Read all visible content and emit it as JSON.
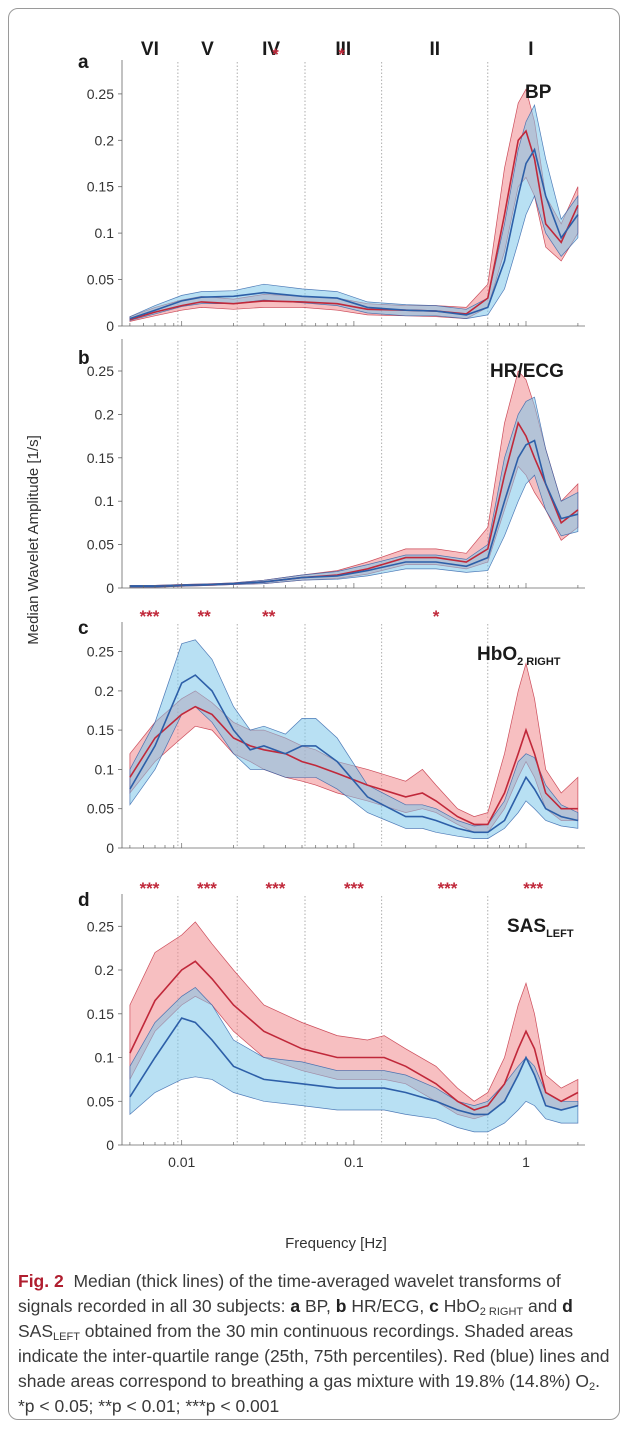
{
  "figure": {
    "ylabel": "Median Wavelet Amplitude [1/s]",
    "xlabel": "Frequency [Hz]",
    "x_ticks": [
      0.01,
      0.1,
      1
    ],
    "x_tick_labels": [
      "0.01",
      "0.1",
      "1"
    ],
    "x_range": [
      0.0045,
      2.2
    ],
    "x_scale": "log",
    "band_boundaries": [
      0.0095,
      0.021,
      0.052,
      0.145,
      0.6
    ],
    "band_labels": [
      "VI",
      "V",
      "IV",
      "III",
      "II",
      "I"
    ],
    "y_ticks": [
      0,
      0.05,
      0.1,
      0.15,
      0.2,
      0.25
    ],
    "y_tick_labels": [
      "0",
      "0.05",
      "0.1",
      "0.15",
      "0.2",
      "0.25"
    ],
    "colors": {
      "red_line": "#c0283a",
      "red_fill": "#f08a8e",
      "blue_line": "#2d5fa8",
      "blue_fill": "#7ec6ea",
      "star": "#c0283a",
      "gridline": "#9a9a9a"
    }
  },
  "caption": {
    "fig_label": "Fig. 2",
    "text1": "Median (thick lines) of the time-averaged wavelet transforms of signals recorded in all 30 subjects: ",
    "a_letter": "a",
    "a_text": " BP, ",
    "b_letter": "b",
    "b_text": " HR/ECG, ",
    "c_letter": "c",
    "c_text_main": " HbO",
    "c_text_sub": "2 RIGHT",
    "c_text_after": " and ",
    "d_letter": "d",
    "d_text_main": " SAS",
    "d_text_sub": "LEFT",
    "text2": " obtained from the 30 min continuous recordings. Shaded areas indicate the inter-quartile range (25th, 75th percentiles). Red (blue) lines and shade areas correspond to breathing a gas mixture with 19.8% (14.8%) O",
    "o2_sub": "2",
    "text3": ". *p < 0.05; **p < 0.01; ***p < 0.001"
  },
  "chart_data": [
    {
      "type": "area",
      "panel": "a",
      "title": "BP",
      "title_sub": "",
      "ylim": [
        0,
        0.28
      ],
      "stars": [
        {
          "x": 0.035,
          "text": "*"
        },
        {
          "x": 0.085,
          "text": "*"
        }
      ],
      "x": [
        0.005,
        0.007,
        0.01,
        0.013,
        0.02,
        0.03,
        0.05,
        0.08,
        0.12,
        0.2,
        0.3,
        0.45,
        0.6,
        0.75,
        0.9,
        1.0,
        1.12,
        1.3,
        1.6,
        2.0
      ],
      "series": [
        {
          "name": "19.8% O2",
          "color": "red",
          "median": [
            0.007,
            0.015,
            0.022,
            0.026,
            0.024,
            0.027,
            0.026,
            0.024,
            0.018,
            0.017,
            0.016,
            0.013,
            0.03,
            0.12,
            0.2,
            0.21,
            0.18,
            0.11,
            0.09,
            0.13
          ],
          "q1": [
            0.005,
            0.011,
            0.017,
            0.02,
            0.018,
            0.02,
            0.02,
            0.017,
            0.012,
            0.011,
            0.01,
            0.008,
            0.02,
            0.08,
            0.15,
            0.16,
            0.14,
            0.085,
            0.07,
            0.1
          ],
          "q3": [
            0.01,
            0.02,
            0.028,
            0.032,
            0.029,
            0.034,
            0.032,
            0.03,
            0.024,
            0.022,
            0.022,
            0.02,
            0.045,
            0.17,
            0.24,
            0.255,
            0.22,
            0.14,
            0.11,
            0.15
          ]
        },
        {
          "name": "14.8% O2",
          "color": "blue",
          "median": [
            0.008,
            0.017,
            0.027,
            0.031,
            0.032,
            0.036,
            0.032,
            0.03,
            0.02,
            0.017,
            0.016,
            0.012,
            0.02,
            0.07,
            0.14,
            0.175,
            0.19,
            0.14,
            0.095,
            0.12
          ],
          "q1": [
            0.006,
            0.013,
            0.021,
            0.024,
            0.024,
            0.028,
            0.025,
            0.022,
            0.014,
            0.011,
            0.011,
            0.008,
            0.012,
            0.04,
            0.09,
            0.12,
            0.14,
            0.1,
            0.075,
            0.095
          ],
          "q3": [
            0.01,
            0.022,
            0.033,
            0.037,
            0.038,
            0.045,
            0.04,
            0.037,
            0.026,
            0.023,
            0.022,
            0.018,
            0.03,
            0.11,
            0.19,
            0.22,
            0.238,
            0.18,
            0.115,
            0.14
          ]
        }
      ]
    },
    {
      "type": "area",
      "panel": "b",
      "title": "HR/ECG",
      "title_sub": "",
      "ylim": [
        0,
        0.28
      ],
      "stars": [],
      "x": [
        0.005,
        0.007,
        0.01,
        0.015,
        0.02,
        0.03,
        0.05,
        0.08,
        0.12,
        0.2,
        0.3,
        0.45,
        0.6,
        0.75,
        0.9,
        1.0,
        1.12,
        1.3,
        1.6,
        2.0
      ],
      "series": [
        {
          "name": "19.8% O2",
          "color": "red",
          "median": [
            0.002,
            0.002,
            0.003,
            0.004,
            0.005,
            0.007,
            0.012,
            0.015,
            0.022,
            0.035,
            0.035,
            0.03,
            0.045,
            0.13,
            0.19,
            0.175,
            0.15,
            0.12,
            0.075,
            0.09
          ],
          "q1": [
            0.001,
            0.001,
            0.002,
            0.003,
            0.004,
            0.005,
            0.009,
            0.011,
            0.016,
            0.027,
            0.027,
            0.022,
            0.03,
            0.09,
            0.14,
            0.13,
            0.11,
            0.09,
            0.055,
            0.07
          ],
          "q3": [
            0.003,
            0.003,
            0.004,
            0.005,
            0.006,
            0.009,
            0.015,
            0.02,
            0.03,
            0.045,
            0.045,
            0.04,
            0.07,
            0.19,
            0.25,
            0.24,
            0.21,
            0.16,
            0.1,
            0.12
          ]
        },
        {
          "name": "14.8% O2",
          "color": "blue",
          "median": [
            0.002,
            0.002,
            0.003,
            0.004,
            0.005,
            0.007,
            0.012,
            0.014,
            0.02,
            0.03,
            0.03,
            0.025,
            0.035,
            0.1,
            0.15,
            0.165,
            0.17,
            0.12,
            0.08,
            0.085
          ],
          "q1": [
            0.001,
            0.001,
            0.002,
            0.003,
            0.004,
            0.005,
            0.009,
            0.01,
            0.014,
            0.022,
            0.022,
            0.018,
            0.02,
            0.06,
            0.1,
            0.12,
            0.13,
            0.09,
            0.06,
            0.065
          ],
          "q3": [
            0.003,
            0.003,
            0.004,
            0.005,
            0.006,
            0.009,
            0.015,
            0.019,
            0.027,
            0.038,
            0.038,
            0.033,
            0.05,
            0.15,
            0.2,
            0.215,
            0.22,
            0.16,
            0.1,
            0.11
          ]
        }
      ]
    },
    {
      "type": "area",
      "panel": "c",
      "title": "HbO",
      "title_sub": "2 RIGHT",
      "ylim": [
        0,
        0.28
      ],
      "stars": [
        {
          "x": 0.0065,
          "text": "***"
        },
        {
          "x": 0.0135,
          "text": "**"
        },
        {
          "x": 0.032,
          "text": "**"
        },
        {
          "x": 0.3,
          "text": "*"
        }
      ],
      "x": [
        0.005,
        0.007,
        0.01,
        0.012,
        0.015,
        0.02,
        0.025,
        0.03,
        0.04,
        0.05,
        0.06,
        0.08,
        0.12,
        0.2,
        0.25,
        0.3,
        0.4,
        0.5,
        0.6,
        0.75,
        0.9,
        1.0,
        1.12,
        1.3,
        1.6,
        2.0
      ],
      "series": [
        {
          "name": "19.8% O2",
          "color": "red",
          "median": [
            0.09,
            0.14,
            0.17,
            0.18,
            0.17,
            0.14,
            0.13,
            0.125,
            0.12,
            0.11,
            0.105,
            0.095,
            0.08,
            0.065,
            0.07,
            0.06,
            0.04,
            0.03,
            0.03,
            0.07,
            0.12,
            0.15,
            0.12,
            0.07,
            0.05,
            0.05
          ],
          "q1": [
            0.07,
            0.11,
            0.14,
            0.155,
            0.15,
            0.12,
            0.11,
            0.1,
            0.09,
            0.085,
            0.08,
            0.07,
            0.06,
            0.045,
            0.05,
            0.045,
            0.03,
            0.02,
            0.02,
            0.05,
            0.09,
            0.11,
            0.09,
            0.05,
            0.035,
            0.035
          ],
          "q3": [
            0.12,
            0.16,
            0.19,
            0.2,
            0.185,
            0.16,
            0.15,
            0.15,
            0.14,
            0.13,
            0.125,
            0.11,
            0.1,
            0.085,
            0.1,
            0.08,
            0.05,
            0.04,
            0.045,
            0.12,
            0.2,
            0.235,
            0.19,
            0.1,
            0.07,
            0.09
          ]
        },
        {
          "name": "14.8% O2",
          "color": "blue",
          "median": [
            0.075,
            0.13,
            0.21,
            0.22,
            0.2,
            0.15,
            0.125,
            0.13,
            0.12,
            0.13,
            0.13,
            0.11,
            0.065,
            0.04,
            0.04,
            0.035,
            0.025,
            0.02,
            0.02,
            0.035,
            0.07,
            0.09,
            0.075,
            0.05,
            0.04,
            0.035
          ],
          "q1": [
            0.055,
            0.1,
            0.17,
            0.18,
            0.16,
            0.12,
            0.1,
            0.1,
            0.09,
            0.09,
            0.09,
            0.075,
            0.045,
            0.025,
            0.025,
            0.02,
            0.015,
            0.012,
            0.012,
            0.025,
            0.045,
            0.06,
            0.05,
            0.035,
            0.028,
            0.025
          ],
          "q3": [
            0.1,
            0.16,
            0.26,
            0.265,
            0.24,
            0.18,
            0.15,
            0.155,
            0.145,
            0.165,
            0.165,
            0.14,
            0.08,
            0.055,
            0.055,
            0.05,
            0.035,
            0.028,
            0.03,
            0.06,
            0.11,
            0.12,
            0.115,
            0.08,
            0.055,
            0.045
          ]
        }
      ]
    },
    {
      "type": "area",
      "panel": "d",
      "title": "SAS",
      "title_sub": "LEFT",
      "ylim": [
        0,
        0.28
      ],
      "stars": [
        {
          "x": 0.0065,
          "text": "***"
        },
        {
          "x": 0.014,
          "text": "***"
        },
        {
          "x": 0.035,
          "text": "***"
        },
        {
          "x": 0.1,
          "text": "***"
        },
        {
          "x": 0.35,
          "text": "***"
        },
        {
          "x": 1.1,
          "text": "***"
        }
      ],
      "x": [
        0.005,
        0.007,
        0.01,
        0.012,
        0.015,
        0.02,
        0.03,
        0.05,
        0.08,
        0.12,
        0.15,
        0.2,
        0.3,
        0.4,
        0.5,
        0.6,
        0.75,
        0.9,
        1.0,
        1.12,
        1.3,
        1.6,
        2.0
      ],
      "series": [
        {
          "name": "19.8% O2",
          "color": "red",
          "median": [
            0.105,
            0.165,
            0.2,
            0.21,
            0.19,
            0.16,
            0.13,
            0.11,
            0.1,
            0.1,
            0.1,
            0.09,
            0.07,
            0.05,
            0.04,
            0.045,
            0.07,
            0.11,
            0.13,
            0.11,
            0.06,
            0.05,
            0.06
          ],
          "q1": [
            0.075,
            0.13,
            0.16,
            0.17,
            0.16,
            0.13,
            0.1,
            0.085,
            0.075,
            0.075,
            0.075,
            0.07,
            0.05,
            0.035,
            0.03,
            0.035,
            0.05,
            0.08,
            0.1,
            0.08,
            0.045,
            0.04,
            0.045
          ],
          "q3": [
            0.16,
            0.22,
            0.24,
            0.255,
            0.23,
            0.2,
            0.16,
            0.14,
            0.125,
            0.12,
            0.125,
            0.11,
            0.09,
            0.065,
            0.05,
            0.06,
            0.1,
            0.16,
            0.185,
            0.15,
            0.08,
            0.065,
            0.075
          ]
        },
        {
          "name": "14.8% O2",
          "color": "blue",
          "median": [
            0.055,
            0.1,
            0.145,
            0.14,
            0.12,
            0.09,
            0.075,
            0.07,
            0.065,
            0.065,
            0.065,
            0.06,
            0.05,
            0.04,
            0.035,
            0.035,
            0.05,
            0.08,
            0.1,
            0.08,
            0.045,
            0.04,
            0.045
          ],
          "q1": [
            0.035,
            0.06,
            0.075,
            0.078,
            0.075,
            0.06,
            0.05,
            0.045,
            0.04,
            0.04,
            0.04,
            0.035,
            0.03,
            0.02,
            0.015,
            0.015,
            0.025,
            0.04,
            0.05,
            0.045,
            0.03,
            0.025,
            0.025
          ],
          "q3": [
            0.09,
            0.14,
            0.17,
            0.18,
            0.16,
            0.12,
            0.1,
            0.095,
            0.085,
            0.085,
            0.085,
            0.08,
            0.065,
            0.05,
            0.045,
            0.05,
            0.07,
            0.09,
            0.1,
            0.09,
            0.06,
            0.05,
            0.05
          ]
        }
      ]
    }
  ]
}
